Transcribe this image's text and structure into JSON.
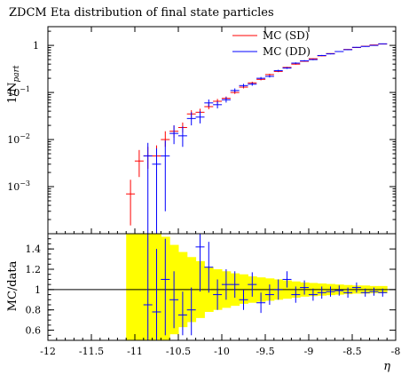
{
  "chart_data": {
    "type": "scatter",
    "title": "ZDCM Eta distribution of final state particles",
    "xlabel": "η",
    "xlim": [
      -12,
      -8
    ],
    "xticks": [
      {
        "v": -12,
        "t": "-12"
      },
      {
        "v": -11.5,
        "t": "-11.5"
      },
      {
        "v": -11,
        "t": "-11"
      },
      {
        "v": -10.5,
        "t": "-10.5"
      },
      {
        "v": -10,
        "t": "-10"
      },
      {
        "v": -9.5,
        "t": "-9.5"
      },
      {
        "v": -9,
        "t": "-9"
      },
      {
        "v": -8.5,
        "t": "-8.5"
      },
      {
        "v": -8,
        "t": "-8"
      }
    ],
    "top_panel": {
      "ylabel_main": "1/N",
      "ylabel_sub": "part",
      "yscale": "log",
      "ylim": [
        0.0001,
        2.5
      ],
      "yticks": [
        {
          "v": 0.001,
          "base": "10",
          "exp": "−3"
        },
        {
          "v": 0.01,
          "base": "10",
          "exp": "−2"
        },
        {
          "v": 0.1,
          "base": "10",
          "exp": "−1"
        },
        {
          "v": 1,
          "base": "1",
          "exp": ""
        }
      ],
      "legend_position": "top-right",
      "series": [
        {
          "name": "MC (SD)",
          "color": "#ff0000",
          "points": [
            {
              "x": -11.05,
              "y": 0.0007,
              "lo": 0.00015,
              "hi": 0.0014
            },
            {
              "x": -10.95,
              "y": 0.0035,
              "lo": 0.0016,
              "hi": 0.006
            },
            {
              "x": -10.85,
              "y": 0.0045,
              "lo": 0.0024,
              "hi": 0.007
            },
            {
              "x": -10.75,
              "y": 0.0045,
              "lo": 0.0025,
              "hi": 0.0075
            },
            {
              "x": -10.65,
              "y": 0.01,
              "lo": 0.007,
              "hi": 0.015
            },
            {
              "x": -10.55,
              "y": 0.015,
              "lo": 0.011,
              "hi": 0.02
            },
            {
              "x": -10.45,
              "y": 0.018,
              "lo": 0.014,
              "hi": 0.023
            },
            {
              "x": -10.35,
              "y": 0.035,
              "lo": 0.029,
              "hi": 0.042
            },
            {
              "x": -10.25,
              "y": 0.038,
              "lo": 0.032,
              "hi": 0.045
            },
            {
              "x": -10.15,
              "y": 0.05,
              "lo": 0.044,
              "hi": 0.058
            },
            {
              "x": -10.05,
              "y": 0.065,
              "lo": 0.058,
              "hi": 0.073
            },
            {
              "x": -9.95,
              "y": 0.075,
              "lo": 0.069,
              "hi": 0.082
            },
            {
              "x": -9.85,
              "y": 0.1,
              "lo": 0.093,
              "hi": 0.108
            },
            {
              "x": -9.75,
              "y": 0.13,
              "lo": 0.122,
              "hi": 0.139
            },
            {
              "x": -9.65,
              "y": 0.16,
              "lo": 0.152,
              "hi": 0.169
            },
            {
              "x": -9.55,
              "y": 0.19,
              "lo": 0.181,
              "hi": 0.2
            },
            {
              "x": -9.45,
              "y": 0.24,
              "lo": 0.23,
              "hi": 0.25
            },
            {
              "x": -9.35,
              "y": 0.28,
              "lo": 0.27,
              "hi": 0.29
            },
            {
              "x": -9.25,
              "y": 0.34,
              "lo": 0.33,
              "hi": 0.35
            },
            {
              "x": -9.15,
              "y": 0.4,
              "lo": 0.39,
              "hi": 0.41
            },
            {
              "x": -9.05,
              "y": 0.46,
              "lo": 0.45,
              "hi": 0.47
            },
            {
              "x": -8.95,
              "y": 0.52,
              "lo": 0.51,
              "hi": 0.53
            },
            {
              "x": -8.85,
              "y": 0.6,
              "lo": 0.59,
              "hi": 0.61
            },
            {
              "x": -8.75,
              "y": 0.67,
              "lo": 0.66,
              "hi": 0.68
            },
            {
              "x": -8.65,
              "y": 0.74,
              "lo": 0.73,
              "hi": 0.75
            },
            {
              "x": -8.55,
              "y": 0.82,
              "lo": 0.81,
              "hi": 0.83
            },
            {
              "x": -8.45,
              "y": 0.9,
              "lo": 0.89,
              "hi": 0.91
            },
            {
              "x": -8.35,
              "y": 0.96,
              "lo": 0.95,
              "hi": 0.97
            },
            {
              "x": -8.25,
              "y": 1.02,
              "lo": 1.01,
              "hi": 1.03
            },
            {
              "x": -8.15,
              "y": 1.07,
              "lo": 1.06,
              "hi": 1.08
            }
          ]
        },
        {
          "name": "MC (DD)",
          "color": "#0000ff",
          "points": [
            {
              "x": -10.85,
              "y": 0.0045,
              "lo": 0.0001,
              "hi": 0.0085
            },
            {
              "x": -10.75,
              "y": 0.003,
              "lo": 0.0001,
              "hi": 0.0065
            },
            {
              "x": -10.65,
              "y": 0.0045,
              "lo": 0.0003,
              "hi": 0.0095
            },
            {
              "x": -10.55,
              "y": 0.0135,
              "lo": 0.008,
              "hi": 0.02
            },
            {
              "x": -10.45,
              "y": 0.012,
              "lo": 0.007,
              "hi": 0.019
            },
            {
              "x": -10.35,
              "y": 0.028,
              "lo": 0.02,
              "hi": 0.038
            },
            {
              "x": -10.25,
              "y": 0.03,
              "lo": 0.022,
              "hi": 0.04
            },
            {
              "x": -10.15,
              "y": 0.06,
              "lo": 0.05,
              "hi": 0.071
            },
            {
              "x": -10.05,
              "y": 0.055,
              "lo": 0.046,
              "hi": 0.065
            },
            {
              "x": -9.95,
              "y": 0.07,
              "lo": 0.061,
              "hi": 0.08
            },
            {
              "x": -9.85,
              "y": 0.11,
              "lo": 0.1,
              "hi": 0.122
            },
            {
              "x": -9.75,
              "y": 0.14,
              "lo": 0.129,
              "hi": 0.152
            },
            {
              "x": -9.65,
              "y": 0.15,
              "lo": 0.139,
              "hi": 0.162
            },
            {
              "x": -9.55,
              "y": 0.2,
              "lo": 0.188,
              "hi": 0.213
            },
            {
              "x": -9.45,
              "y": 0.22,
              "lo": 0.208,
              "hi": 0.233
            },
            {
              "x": -9.35,
              "y": 0.29,
              "lo": 0.277,
              "hi": 0.304
            },
            {
              "x": -9.25,
              "y": 0.33,
              "lo": 0.317,
              "hi": 0.344
            },
            {
              "x": -9.15,
              "y": 0.42,
              "lo": 0.405,
              "hi": 0.436
            },
            {
              "x": -9.05,
              "y": 0.47,
              "lo": 0.455,
              "hi": 0.486
            },
            {
              "x": -8.95,
              "y": 0.5,
              "lo": 0.485,
              "hi": 0.516
            },
            {
              "x": -8.85,
              "y": 0.61,
              "lo": 0.595,
              "hi": 0.626
            },
            {
              "x": -8.75,
              "y": 0.66,
              "lo": 0.645,
              "hi": 0.676
            },
            {
              "x": -8.65,
              "y": 0.74,
              "lo": 0.725,
              "hi": 0.756
            },
            {
              "x": -8.55,
              "y": 0.81,
              "lo": 0.795,
              "hi": 0.826
            },
            {
              "x": -8.45,
              "y": 0.91,
              "lo": 0.895,
              "hi": 0.926
            },
            {
              "x": -8.35,
              "y": 0.95,
              "lo": 0.935,
              "hi": 0.966
            },
            {
              "x": -8.25,
              "y": 1.0,
              "lo": 0.985,
              "hi": 1.016
            },
            {
              "x": -8.15,
              "y": 1.08,
              "lo": 1.065,
              "hi": 1.096
            }
          ]
        }
      ]
    },
    "ratio_panel": {
      "ylabel": "MC/data",
      "ylim": [
        0.5,
        1.55
      ],
      "yticks": [
        {
          "v": 0.6,
          "t": "0.6"
        },
        {
          "v": 0.8,
          "t": "0.8"
        },
        {
          "v": 1,
          "t": "1"
        },
        {
          "v": 1.2,
          "t": "1.2"
        },
        {
          "v": 1.4,
          "t": "1.4"
        }
      ],
      "reference": 1,
      "band_color": "#ffff00",
      "band": [
        {
          "x0": -11.1,
          "x1": -10.9,
          "lo": 0.5,
          "hi": 1.55
        },
        {
          "x0": -10.9,
          "x1": -10.8,
          "lo": 0.5,
          "hi": 1.55
        },
        {
          "x0": -10.8,
          "x1": -10.7,
          "lo": 0.5,
          "hi": 1.55
        },
        {
          "x0": -10.7,
          "x1": -10.6,
          "lo": 0.5,
          "hi": 1.52
        },
        {
          "x0": -10.6,
          "x1": -10.5,
          "lo": 0.56,
          "hi": 1.44
        },
        {
          "x0": -10.5,
          "x1": -10.4,
          "lo": 0.63,
          "hi": 1.37
        },
        {
          "x0": -10.4,
          "x1": -10.3,
          "lo": 0.68,
          "hi": 1.32
        },
        {
          "x0": -10.3,
          "x1": -10.2,
          "lo": 0.72,
          "hi": 1.28
        },
        {
          "x0": -10.2,
          "x1": -10.1,
          "lo": 0.78,
          "hi": 1.22
        },
        {
          "x0": -10.1,
          "x1": -10.0,
          "lo": 0.8,
          "hi": 1.2
        },
        {
          "x0": -10.0,
          "x1": -9.9,
          "lo": 0.82,
          "hi": 1.18
        },
        {
          "x0": -9.9,
          "x1": -9.8,
          "lo": 0.84,
          "hi": 1.16
        },
        {
          "x0": -9.8,
          "x1": -9.7,
          "lo": 0.86,
          "hi": 1.15
        },
        {
          "x0": -9.7,
          "x1": -9.6,
          "lo": 0.87,
          "hi": 1.13
        },
        {
          "x0": -9.6,
          "x1": -9.5,
          "lo": 0.88,
          "hi": 1.12
        },
        {
          "x0": -9.5,
          "x1": -9.4,
          "lo": 0.89,
          "hi": 1.11
        },
        {
          "x0": -9.4,
          "x1": -9.3,
          "lo": 0.9,
          "hi": 1.1
        },
        {
          "x0": -9.3,
          "x1": -9.2,
          "lo": 0.91,
          "hi": 1.09
        },
        {
          "x0": -9.2,
          "x1": -9.1,
          "lo": 0.92,
          "hi": 1.08
        },
        {
          "x0": -9.1,
          "x1": -9.0,
          "lo": 0.93,
          "hi": 1.07
        },
        {
          "x0": -9.0,
          "x1": -8.9,
          "lo": 0.935,
          "hi": 1.065
        },
        {
          "x0": -8.9,
          "x1": -8.8,
          "lo": 0.94,
          "hi": 1.06
        },
        {
          "x0": -8.8,
          "x1": -8.7,
          "lo": 0.945,
          "hi": 1.055
        },
        {
          "x0": -8.7,
          "x1": -8.6,
          "lo": 0.95,
          "hi": 1.05
        },
        {
          "x0": -8.6,
          "x1": -8.5,
          "lo": 0.955,
          "hi": 1.045
        },
        {
          "x0": -8.5,
          "x1": -8.4,
          "lo": 0.96,
          "hi": 1.04
        },
        {
          "x0": -8.4,
          "x1": -8.3,
          "lo": 0.96,
          "hi": 1.04
        },
        {
          "x0": -8.3,
          "x1": -8.2,
          "lo": 0.965,
          "hi": 1.035
        },
        {
          "x0": -8.2,
          "x1": -8.1,
          "lo": 0.965,
          "hi": 1.035
        }
      ],
      "series": [
        {
          "name": "MC (DD)",
          "color": "#0000ff",
          "points": [
            {
              "x": -10.85,
              "y": 0.85,
              "lo": 0.5,
              "hi": 1.55
            },
            {
              "x": -10.75,
              "y": 0.78,
              "lo": 0.5,
              "hi": 1.4
            },
            {
              "x": -10.65,
              "y": 1.1,
              "lo": 0.55,
              "hi": 1.5
            },
            {
              "x": -10.55,
              "y": 0.9,
              "lo": 0.62,
              "hi": 1.18
            },
            {
              "x": -10.45,
              "y": 0.75,
              "lo": 0.55,
              "hi": 0.98
            },
            {
              "x": -10.35,
              "y": 0.8,
              "lo": 0.55,
              "hi": 1.02
            },
            {
              "x": -10.25,
              "y": 1.42,
              "lo": 0.98,
              "hi": 1.55
            },
            {
              "x": -10.15,
              "y": 1.22,
              "lo": 0.97,
              "hi": 1.47
            },
            {
              "x": -10.05,
              "y": 0.95,
              "lo": 0.8,
              "hi": 1.1
            },
            {
              "x": -9.95,
              "y": 1.05,
              "lo": 0.9,
              "hi": 1.2
            },
            {
              "x": -9.85,
              "y": 1.05,
              "lo": 0.92,
              "hi": 1.18
            },
            {
              "x": -9.75,
              "y": 0.9,
              "lo": 0.8,
              "hi": 1.0
            },
            {
              "x": -9.65,
              "y": 1.05,
              "lo": 0.93,
              "hi": 1.17
            },
            {
              "x": -9.55,
              "y": 0.87,
              "lo": 0.77,
              "hi": 0.97
            },
            {
              "x": -9.45,
              "y": 0.95,
              "lo": 0.85,
              "hi": 1.05
            },
            {
              "x": -9.35,
              "y": 1.0,
              "lo": 0.9,
              "hi": 1.1
            },
            {
              "x": -9.25,
              "y": 1.1,
              "lo": 1.02,
              "hi": 1.18
            },
            {
              "x": -9.15,
              "y": 0.95,
              "lo": 0.87,
              "hi": 1.03
            },
            {
              "x": -9.05,
              "y": 1.02,
              "lo": 0.95,
              "hi": 1.09
            },
            {
              "x": -8.95,
              "y": 0.95,
              "lo": 0.89,
              "hi": 1.01
            },
            {
              "x": -8.85,
              "y": 0.97,
              "lo": 0.91,
              "hi": 1.03
            },
            {
              "x": -8.75,
              "y": 0.98,
              "lo": 0.93,
              "hi": 1.03
            },
            {
              "x": -8.65,
              "y": 0.99,
              "lo": 0.94,
              "hi": 1.04
            },
            {
              "x": -8.55,
              "y": 0.97,
              "lo": 0.92,
              "hi": 1.02
            },
            {
              "x": -8.45,
              "y": 1.02,
              "lo": 0.97,
              "hi": 1.07
            },
            {
              "x": -8.35,
              "y": 0.97,
              "lo": 0.93,
              "hi": 1.01
            },
            {
              "x": -8.25,
              "y": 0.98,
              "lo": 0.94,
              "hi": 1.02
            },
            {
              "x": -8.15,
              "y": 0.97,
              "lo": 0.93,
              "hi": 1.01
            }
          ]
        }
      ]
    }
  }
}
